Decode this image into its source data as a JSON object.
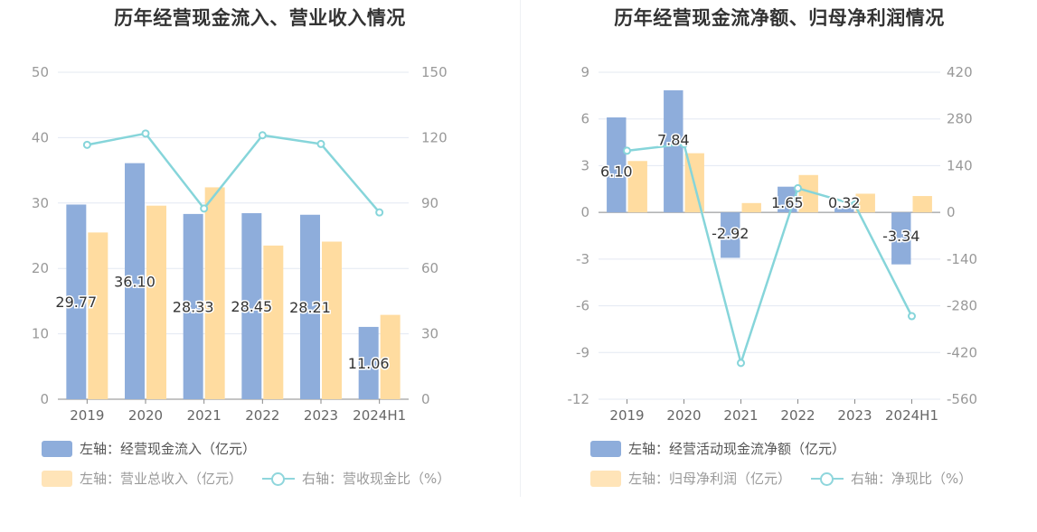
{
  "colors": {
    "inflow": "#8eaddb",
    "revenue": "#ffdca0",
    "line": "#86d5da",
    "grid": "#e3e8f2",
    "axis": "#999999",
    "text": "#333333"
  },
  "legend_prefix_left": "左轴：",
  "legend_prefix_right": "右轴：",
  "chart_data": [
    {
      "type": "bar",
      "title": "历年经营现金流入、营业收入情况",
      "categories": [
        "2019",
        "2020",
        "2021",
        "2022",
        "2023",
        "2024H1"
      ],
      "left_axis": {
        "ylim": [
          0,
          50
        ],
        "ticks": [
          "50",
          "40",
          "30",
          "20",
          "10",
          "0"
        ]
      },
      "right_axis": {
        "ylim": [
          0,
          150
        ],
        "ticks": [
          "150",
          "120",
          "90",
          "60",
          "30",
          "0"
        ]
      },
      "series": [
        {
          "name": "经营现金流入（亿元）",
          "axis": "left",
          "kind": "bar",
          "values": [
            29.77,
            36.1,
            28.33,
            28.45,
            28.21,
            11.06
          ],
          "labels": [
            "29.77",
            "36.10",
            "28.33",
            "28.45",
            "28.21",
            "11.06"
          ]
        },
        {
          "name": "营业总收入（亿元）",
          "axis": "left",
          "kind": "bar",
          "values": [
            25.5,
            29.6,
            32.4,
            23.5,
            24.1,
            12.9
          ]
        },
        {
          "name": "营收现金比（%）",
          "axis": "right",
          "kind": "line",
          "values": [
            116.7,
            121.9,
            87.5,
            121.1,
            117.1,
            85.7
          ]
        }
      ]
    },
    {
      "type": "bar",
      "title": "历年经营现金流净额、归母净利润情况",
      "categories": [
        "2019",
        "2020",
        "2021",
        "2022",
        "2023",
        "2024H1"
      ],
      "left_axis": {
        "ylim": [
          -12,
          9
        ],
        "ticks": [
          "9",
          "6",
          "3",
          "0",
          "-3",
          "-6",
          "-9",
          "-12"
        ]
      },
      "right_axis": {
        "ylim": [
          -560,
          420
        ],
        "ticks": [
          "420",
          "280",
          "140",
          "0",
          "-140",
          "-280",
          "-420",
          "-560"
        ]
      },
      "series": [
        {
          "name": "经营活动现金流净额（亿元）",
          "axis": "left",
          "kind": "bar",
          "values": [
            6.1,
            7.84,
            -2.92,
            1.65,
            0.32,
            -3.34
          ],
          "labels": [
            "6.10",
            "7.84",
            "-2.92",
            "1.65",
            "0.32",
            "-3.34"
          ]
        },
        {
          "name": "归母净利润（亿元）",
          "axis": "left",
          "kind": "bar",
          "values": [
            3.3,
            3.8,
            0.6,
            2.4,
            1.2,
            1.05
          ]
        },
        {
          "name": "净现比（%）",
          "axis": "right",
          "kind": "line",
          "values": [
            184.8,
            204.7,
            -451.3,
            72.4,
            23.4,
            -311.0
          ]
        }
      ]
    }
  ]
}
